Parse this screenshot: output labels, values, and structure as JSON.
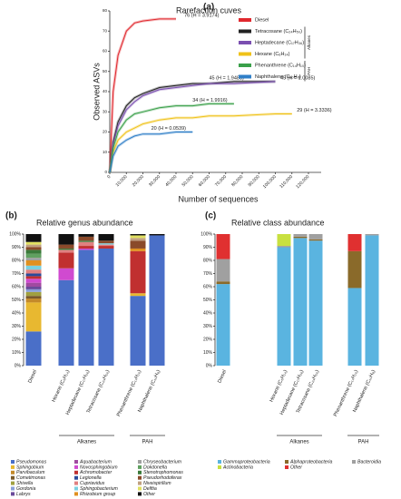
{
  "chart_data": [
    {
      "type": "line",
      "panel": "(a)",
      "title": "Rarefaction cuves",
      "x_label": "Number of sequences",
      "y_label": "Observed ASVs",
      "x": [
        0,
        2000,
        5000,
        10000,
        15000,
        20000,
        30000,
        40000,
        50000,
        60000,
        75000,
        100000,
        110000
      ],
      "xlim": [
        0,
        120000
      ],
      "xticks": [
        0,
        {
          "value": 10000,
          "label": "10,000"
        },
        {
          "value": 20000,
          "label": "20,000"
        },
        {
          "value": 30000,
          "label": "30,000"
        },
        {
          "value": 40000,
          "label": "40,000"
        },
        {
          "value": 50000,
          "label": "50,000"
        },
        {
          "value": 60000,
          "label": "60,000"
        },
        {
          "value": 70000,
          "label": "70,000"
        },
        {
          "value": 80000,
          "label": "80,000"
        },
        {
          "value": 90000,
          "label": "90,000"
        },
        {
          "value": 100000,
          "label": "100,000"
        },
        {
          "value": 110000,
          "label": "110,000"
        },
        {
          "value": 120000,
          "label": "120,000"
        }
      ],
      "ylim": [
        0,
        80
      ],
      "yticks": [
        0,
        10,
        20,
        30,
        40,
        50,
        60,
        70,
        80
      ],
      "legend_groups": [
        "Alkanes",
        "PAH"
      ],
      "series": [
        {
          "name": "Diesel",
          "color": "#e0282e",
          "annotation": "76 (H = 3.9174)",
          "values": [
            0,
            40,
            58,
            70,
            74,
            75,
            76,
            76,
            null,
            null,
            null,
            null,
            null
          ]
        },
        {
          "name": "Tetracosane (C₂₄H₅₀)",
          "color": "#222222",
          "annotation": "45 (H = 1.9488)",
          "values": [
            0,
            15,
            25,
            33,
            37,
            39,
            42,
            43,
            44,
            44,
            45,
            45,
            null
          ]
        },
        {
          "name": "Heptadecane (C₁₇H₃₆)",
          "color": "#7b4fb0",
          "annotation": "45 (H = 1.0085)",
          "values": [
            0,
            14,
            23,
            31,
            35,
            38,
            41,
            42,
            43,
            44,
            44,
            45,
            null
          ]
        },
        {
          "name": "Hexane (C₆H₁₄)",
          "color": "#f0c21a",
          "annotation": "29 (H = 3.3336)",
          "values": [
            0,
            10,
            16,
            20,
            22,
            24,
            26,
            27,
            27,
            28,
            28,
            29,
            29
          ]
        },
        {
          "name": "Phenanthrene (C₁₄H₁₀)",
          "color": "#3aa04a",
          "annotation": "34 (H = 1.9916)",
          "values": [
            0,
            12,
            20,
            26,
            29,
            30,
            32,
            33,
            33,
            34,
            34,
            null,
            null
          ]
        },
        {
          "name": "Naphthalene (C₁₀H₈)",
          "color": "#2f7fc8",
          "annotation": "20 (H = 0.0539)",
          "values": [
            0,
            8,
            13,
            16,
            18,
            19,
            19,
            20,
            20,
            null,
            null,
            null,
            null
          ]
        }
      ]
    },
    {
      "type": "stacked_bar",
      "panel": "(b)",
      "title": "Relative genus abundance",
      "categories": [
        "Diesel",
        "Hexane (C₆H₁₄)",
        "Heptadecane (C₁₇H₃₆)",
        "Tetracosane (C₂₄H₅₀)",
        "Phenanthrene (C₁₄H₁₀)",
        "Naphthalene (C₁₀H₈)"
      ],
      "groups": [
        "Alkanes",
        "PAH"
      ],
      "ylim": [
        0,
        100
      ],
      "yticks": [
        {
          "value": 0,
          "label": "0%"
        },
        {
          "value": 10,
          "label": "10%"
        },
        {
          "value": 20,
          "label": "20%"
        },
        {
          "value": 30,
          "label": "30%"
        },
        {
          "value": 40,
          "label": "40%"
        },
        {
          "value": 50,
          "label": "50%"
        },
        {
          "value": 60,
          "label": "60%"
        },
        {
          "value": 70,
          "label": "70%"
        },
        {
          "value": 80,
          "label": "80%"
        },
        {
          "value": 90,
          "label": "90%"
        },
        {
          "value": 100,
          "label": "100%"
        }
      ],
      "series": [
        {
          "name": "Pseudomonas",
          "color": "#4a6fc8",
          "values": [
            26,
            65,
            88,
            89,
            53,
            99
          ]
        },
        {
          "name": "Sphingobium",
          "color": "#e8b830",
          "values": [
            22,
            0,
            0,
            0,
            2,
            0
          ]
        },
        {
          "name": "Parvibaculum",
          "color": "#c48a2a",
          "values": [
            3,
            0,
            0,
            0,
            0,
            0
          ]
        },
        {
          "name": "Cometimonas",
          "color": "#7a5a2a",
          "values": [
            2,
            0,
            0,
            0,
            0,
            0
          ]
        },
        {
          "name": "Shivella",
          "color": "#a0a040",
          "values": [
            3,
            0,
            0,
            0,
            0,
            0
          ]
        },
        {
          "name": "Gordonia",
          "color": "#8aa0d8",
          "values": [
            2,
            0,
            0,
            0,
            0,
            0
          ]
        },
        {
          "name": "Labrys",
          "color": "#6a4a9a",
          "values": [
            2,
            0,
            0,
            0,
            0,
            0
          ]
        },
        {
          "name": "Aquabacterium",
          "color": "#a04aa0",
          "values": [
            3,
            0,
            0,
            0,
            0,
            0
          ]
        },
        {
          "name": "Novosphingobium",
          "color": "#d04ad0",
          "values": [
            3,
            9,
            1,
            0,
            0,
            0
          ]
        },
        {
          "name": "Achromobacter",
          "color": "#c03030",
          "values": [
            2,
            12,
            2,
            2,
            32,
            0
          ]
        },
        {
          "name": "Legionella",
          "color": "#2a4a9a",
          "values": [
            2,
            0,
            0,
            0,
            0,
            0
          ]
        },
        {
          "name": "Cupriavidus",
          "color": "#e08080",
          "values": [
            3,
            2,
            3,
            1,
            0,
            0
          ]
        },
        {
          "name": "Sphingobacterium",
          "color": "#7ad0e0",
          "values": [
            3,
            0,
            0,
            1,
            0,
            0
          ]
        },
        {
          "name": "Rhizobium group",
          "color": "#e09020",
          "values": [
            4,
            0,
            0,
            0,
            2,
            0
          ]
        },
        {
          "name": "Chryseobacterium",
          "color": "#a0a0a0",
          "values": [
            2,
            0,
            0,
            0,
            0,
            0
          ]
        },
        {
          "name": "Dokdonella",
          "color": "#60a060",
          "values": [
            3,
            0,
            0,
            0,
            0,
            0
          ]
        },
        {
          "name": "Stenotrophomonas",
          "color": "#3a7a3a",
          "values": [
            3,
            1,
            1,
            0,
            0,
            0
          ]
        },
        {
          "name": "Pseudorhodoferax",
          "color": "#8a4a2a",
          "values": [
            2,
            3,
            3,
            2,
            6,
            0
          ]
        },
        {
          "name": "Niveispirillum",
          "color": "#c0a080",
          "values": [
            2,
            0,
            0,
            0,
            2,
            0
          ]
        },
        {
          "name": "Delftia",
          "color": "#e0e060",
          "values": [
            2,
            0,
            0,
            0,
            2,
            0
          ]
        },
        {
          "name": "Other",
          "color": "#111111",
          "values": [
            6,
            8,
            2,
            5,
            1,
            1
          ]
        }
      ]
    },
    {
      "type": "stacked_bar",
      "panel": "(c)",
      "title": "Relative class abundance",
      "categories": [
        "Diesel",
        "Hexane (C₆H₁₄)",
        "Heptadecane (C₁₇H₃₆)",
        "Tetracosane (C₂₄H₅₀)",
        "Phenanthrene (C₁₄H₁₀)",
        "Naphthalene (C₁₀H₈)"
      ],
      "groups": [
        "Alkanes",
        "PAH"
      ],
      "ylim": [
        0,
        100
      ],
      "yticks": [
        {
          "value": 0,
          "label": "0%"
        },
        {
          "value": 10,
          "label": "10%"
        },
        {
          "value": 20,
          "label": "20%"
        },
        {
          "value": 30,
          "label": "30%"
        },
        {
          "value": 40,
          "label": "40%"
        },
        {
          "value": 50,
          "label": "50%"
        },
        {
          "value": 60,
          "label": "60%"
        },
        {
          "value": 70,
          "label": "70%"
        },
        {
          "value": 80,
          "label": "80%"
        },
        {
          "value": 90,
          "label": "90%"
        },
        {
          "value": 100,
          "label": "100%"
        }
      ],
      "series": [
        {
          "name": "Gammaproteobacteria",
          "color": "#5ab4e0",
          "values": [
            62,
            90,
            97,
            95,
            59,
            99
          ]
        },
        {
          "name": "Alphaproteobacteria",
          "color": "#8a6a2a",
          "values": [
            2,
            0,
            1,
            1,
            28,
            0
          ]
        },
        {
          "name": "Bacteroidia",
          "color": "#a0a0a0",
          "values": [
            17,
            1,
            2,
            4,
            0,
            1
          ]
        },
        {
          "name": "Actinobacteria",
          "color": "#c8e040",
          "values": [
            0,
            9,
            0,
            0,
            0,
            0
          ]
        },
        {
          "name": "Other",
          "color": "#e03030",
          "values": [
            19,
            0,
            0,
            0,
            13,
            0
          ]
        }
      ]
    }
  ]
}
